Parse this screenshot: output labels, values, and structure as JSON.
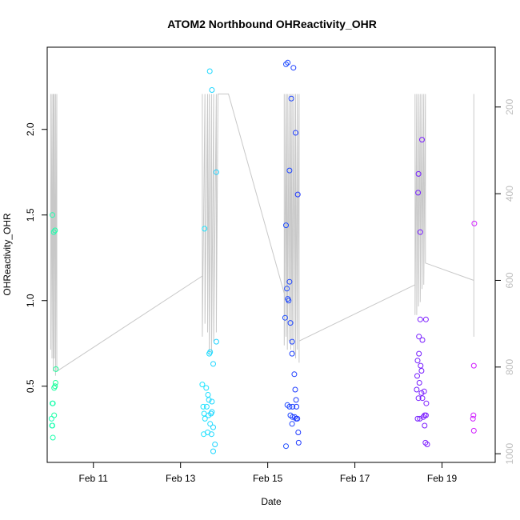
{
  "chart_data": {
    "type": "scatter",
    "title": "ATOM2 Northbound OHReactivity_OHR",
    "xlabel": "Date",
    "ylabel": "OHReactivity_OHR",
    "x_ticks": [
      {
        "day": 11,
        "label": "Feb 11"
      },
      {
        "day": 13,
        "label": "Feb 13"
      },
      {
        "day": 15,
        "label": "Feb 15"
      },
      {
        "day": 17,
        "label": "Feb 17"
      },
      {
        "day": 19,
        "label": "Feb 19"
      }
    ],
    "y_ticks": [
      0.5,
      1.0,
      1.5,
      2.0
    ],
    "y_tick_labels": [
      "0.5",
      "1.0",
      "1.5",
      "2.0"
    ],
    "y2_ticks": [
      200,
      400,
      600,
      800,
      1000
    ],
    "y2_tick_labels": [
      "200",
      "400",
      "600",
      "800",
      "1000"
    ],
    "xlim": [
      9.94,
      20.22
    ],
    "ylim": [
      0.055,
      2.48
    ],
    "y2lim": [
      1020,
      62
    ],
    "y2_label": "",
    "points": [
      {
        "day": 10.06,
        "value": 1.5,
        "color": "#1dffb0"
      },
      {
        "day": 10.09,
        "value": 1.4,
        "color": "#1cffb0"
      },
      {
        "day": 10.12,
        "value": 1.41,
        "color": "#1cffa8"
      },
      {
        "day": 10.14,
        "value": 0.6,
        "color": "#1cff9c"
      },
      {
        "day": 10.13,
        "value": 0.52,
        "color": "#1cff98"
      },
      {
        "day": 10.1,
        "value": 0.49,
        "color": "#1cffa0"
      },
      {
        "day": 10.12,
        "value": 0.5,
        "color": "#1cff9c"
      },
      {
        "day": 10.06,
        "value": 0.4,
        "color": "#1cffb0"
      },
      {
        "day": 10.07,
        "value": 0.4,
        "color": "#1cffac"
      },
      {
        "day": 10.04,
        "value": 0.31,
        "color": "#1cffb8"
      },
      {
        "day": 10.1,
        "value": 0.33,
        "color": "#1cffa4"
      },
      {
        "day": 10.05,
        "value": 0.27,
        "color": "#1cffb4"
      },
      {
        "day": 10.06,
        "value": 0.27,
        "color": "#1cffb0"
      },
      {
        "day": 10.07,
        "value": 0.2,
        "color": "#1cffac"
      },
      {
        "day": 13.55,
        "value": 1.42,
        "color": "#1ee4ff"
      },
      {
        "day": 13.67,
        "value": 2.34,
        "color": "#1ed8ff"
      },
      {
        "day": 13.72,
        "value": 2.23,
        "color": "#1ed6ff"
      },
      {
        "day": 13.82,
        "value": 1.75,
        "color": "#1ed2ff"
      },
      {
        "day": 13.82,
        "value": 0.76,
        "color": "#1ed2ff"
      },
      {
        "day": 13.66,
        "value": 0.69,
        "color": "#1edcff"
      },
      {
        "day": 13.68,
        "value": 0.7,
        "color": "#1edaff"
      },
      {
        "day": 13.75,
        "value": 0.63,
        "color": "#1ed6ff"
      },
      {
        "day": 13.5,
        "value": 0.51,
        "color": "#1ee6ff"
      },
      {
        "day": 13.59,
        "value": 0.49,
        "color": "#1ee2ff"
      },
      {
        "day": 13.63,
        "value": 0.45,
        "color": "#1edeff"
      },
      {
        "day": 13.65,
        "value": 0.42,
        "color": "#1edcff"
      },
      {
        "day": 13.72,
        "value": 0.41,
        "color": "#1ed8ff"
      },
      {
        "day": 13.52,
        "value": 0.38,
        "color": "#1ee6ff"
      },
      {
        "day": 13.6,
        "value": 0.38,
        "color": "#1ee0ff"
      },
      {
        "day": 13.54,
        "value": 0.34,
        "color": "#1ee4ff"
      },
      {
        "day": 13.64,
        "value": 0.33,
        "color": "#1edcff"
      },
      {
        "day": 13.7,
        "value": 0.34,
        "color": "#1ed8ff"
      },
      {
        "day": 13.72,
        "value": 0.35,
        "color": "#1ed6ff"
      },
      {
        "day": 13.56,
        "value": 0.31,
        "color": "#1ee2ff"
      },
      {
        "day": 13.68,
        "value": 0.28,
        "color": "#1edaff"
      },
      {
        "day": 13.75,
        "value": 0.26,
        "color": "#1ed6ff"
      },
      {
        "day": 13.53,
        "value": 0.22,
        "color": "#1ee4ff"
      },
      {
        "day": 13.62,
        "value": 0.23,
        "color": "#1edeff"
      },
      {
        "day": 13.71,
        "value": 0.22,
        "color": "#1ed8ff"
      },
      {
        "day": 13.79,
        "value": 0.16,
        "color": "#1ed4ff"
      },
      {
        "day": 13.75,
        "value": 0.12,
        "color": "#1ed6ff"
      },
      {
        "day": 15.42,
        "value": 2.38,
        "color": "#1e4cff"
      },
      {
        "day": 15.46,
        "value": 2.39,
        "color": "#1e48ff"
      },
      {
        "day": 15.59,
        "value": 2.36,
        "color": "#1e40ff"
      },
      {
        "day": 15.54,
        "value": 2.18,
        "color": "#1e44ff"
      },
      {
        "day": 15.64,
        "value": 1.98,
        "color": "#1e3cff"
      },
      {
        "day": 15.5,
        "value": 1.76,
        "color": "#1e46ff"
      },
      {
        "day": 15.69,
        "value": 1.62,
        "color": "#1e38ff"
      },
      {
        "day": 15.42,
        "value": 1.44,
        "color": "#1e4cff"
      },
      {
        "day": 15.5,
        "value": 1.11,
        "color": "#1e46ff"
      },
      {
        "day": 15.44,
        "value": 1.07,
        "color": "#1e4aff"
      },
      {
        "day": 15.46,
        "value": 1.01,
        "color": "#1e48ff"
      },
      {
        "day": 15.48,
        "value": 1.0,
        "color": "#1e48ff"
      },
      {
        "day": 15.4,
        "value": 0.9,
        "color": "#1e4eff"
      },
      {
        "day": 15.52,
        "value": 0.87,
        "color": "#1e46ff"
      },
      {
        "day": 15.56,
        "value": 0.76,
        "color": "#1e42ff"
      },
      {
        "day": 15.56,
        "value": 0.69,
        "color": "#1e42ff"
      },
      {
        "day": 15.61,
        "value": 0.57,
        "color": "#1e3eff"
      },
      {
        "day": 15.63,
        "value": 0.48,
        "color": "#1e3cff"
      },
      {
        "day": 15.65,
        "value": 0.42,
        "color": "#1e3cff"
      },
      {
        "day": 15.45,
        "value": 0.39,
        "color": "#1e48ff"
      },
      {
        "day": 15.5,
        "value": 0.38,
        "color": "#1e46ff"
      },
      {
        "day": 15.57,
        "value": 0.38,
        "color": "#1e42ff"
      },
      {
        "day": 15.66,
        "value": 0.38,
        "color": "#1e3aff"
      },
      {
        "day": 15.52,
        "value": 0.33,
        "color": "#1e46ff"
      },
      {
        "day": 15.57,
        "value": 0.32,
        "color": "#1e42ff"
      },
      {
        "day": 15.62,
        "value": 0.32,
        "color": "#1e3eff"
      },
      {
        "day": 15.65,
        "value": 0.31,
        "color": "#1e3cff"
      },
      {
        "day": 15.68,
        "value": 0.31,
        "color": "#1e3aff"
      },
      {
        "day": 15.56,
        "value": 0.28,
        "color": "#1e42ff"
      },
      {
        "day": 15.7,
        "value": 0.23,
        "color": "#1e38ff"
      },
      {
        "day": 15.42,
        "value": 0.15,
        "color": "#1e4cff"
      },
      {
        "day": 15.71,
        "value": 0.17,
        "color": "#1e38ff"
      },
      {
        "day": 18.54,
        "value": 1.94,
        "color": "#7a1eff"
      },
      {
        "day": 18.46,
        "value": 1.74,
        "color": "#761eff"
      },
      {
        "day": 18.45,
        "value": 1.63,
        "color": "#741eff"
      },
      {
        "day": 18.5,
        "value": 1.4,
        "color": "#781eff"
      },
      {
        "day": 18.5,
        "value": 0.89,
        "color": "#781eff"
      },
      {
        "day": 18.63,
        "value": 0.89,
        "color": "#7e1eff"
      },
      {
        "day": 18.47,
        "value": 0.79,
        "color": "#761eff"
      },
      {
        "day": 18.55,
        "value": 0.77,
        "color": "#7a1eff"
      },
      {
        "day": 18.47,
        "value": 0.69,
        "color": "#761eff"
      },
      {
        "day": 18.44,
        "value": 0.65,
        "color": "#741eff"
      },
      {
        "day": 18.51,
        "value": 0.62,
        "color": "#781eff"
      },
      {
        "day": 18.53,
        "value": 0.59,
        "color": "#7a1eff"
      },
      {
        "day": 18.43,
        "value": 0.56,
        "color": "#741eff"
      },
      {
        "day": 18.48,
        "value": 0.52,
        "color": "#761eff"
      },
      {
        "day": 18.42,
        "value": 0.48,
        "color": "#721eff"
      },
      {
        "day": 18.53,
        "value": 0.46,
        "color": "#7a1eff"
      },
      {
        "day": 18.59,
        "value": 0.47,
        "color": "#7c1eff"
      },
      {
        "day": 18.46,
        "value": 0.43,
        "color": "#761eff"
      },
      {
        "day": 18.55,
        "value": 0.43,
        "color": "#7a1eff"
      },
      {
        "day": 18.64,
        "value": 0.4,
        "color": "#7e1eff"
      },
      {
        "day": 18.44,
        "value": 0.31,
        "color": "#741eff"
      },
      {
        "day": 18.49,
        "value": 0.31,
        "color": "#761eff"
      },
      {
        "day": 18.57,
        "value": 0.32,
        "color": "#7a1eff"
      },
      {
        "day": 18.6,
        "value": 0.33,
        "color": "#7c1eff"
      },
      {
        "day": 18.63,
        "value": 0.33,
        "color": "#7e1eff"
      },
      {
        "day": 18.6,
        "value": 0.27,
        "color": "#7c1eff"
      },
      {
        "day": 18.62,
        "value": 0.17,
        "color": "#7e1eff"
      },
      {
        "day": 18.66,
        "value": 0.16,
        "color": "#7e1eff"
      },
      {
        "day": 19.74,
        "value": 1.45,
        "color": "#d21eff"
      },
      {
        "day": 19.73,
        "value": 0.62,
        "color": "#d01eff"
      },
      {
        "day": 19.72,
        "value": 0.33,
        "color": "#d01eff"
      },
      {
        "day": 19.71,
        "value": 0.31,
        "color": "#ce1eff"
      },
      {
        "day": 19.73,
        "value": 0.24,
        "color": "#d01eff"
      }
    ],
    "secondary_series": {
      "name": "",
      "color": "#c8c8c8",
      "axis": "right",
      "points": [
        [
          10.02,
          170
        ],
        [
          10.02,
          760
        ],
        [
          10.05,
          170
        ],
        [
          10.05,
          780
        ],
        [
          10.08,
          170
        ],
        [
          10.08,
          810
        ],
        [
          10.1,
          170
        ],
        [
          10.1,
          780
        ],
        [
          10.13,
          170
        ],
        [
          10.13,
          820
        ],
        [
          10.16,
          170
        ],
        [
          10.16,
          810
        ],
        [
          13.5,
          590
        ],
        [
          13.5,
          170
        ],
        [
          13.5,
          730
        ],
        [
          13.56,
          170
        ],
        [
          13.56,
          700
        ],
        [
          13.62,
          170
        ],
        [
          13.62,
          720
        ],
        [
          13.66,
          170
        ],
        [
          13.66,
          770
        ],
        [
          13.71,
          170
        ],
        [
          13.71,
          770
        ],
        [
          13.76,
          170
        ],
        [
          13.76,
          740
        ],
        [
          13.82,
          170
        ],
        [
          13.82,
          720
        ],
        [
          13.86,
          170
        ],
        [
          14.1,
          170
        ],
        [
          15.38,
          630
        ],
        [
          15.38,
          170
        ],
        [
          15.38,
          750
        ],
        [
          15.42,
          170
        ],
        [
          15.42,
          730
        ],
        [
          15.45,
          170
        ],
        [
          15.45,
          760
        ],
        [
          15.49,
          170
        ],
        [
          15.49,
          740
        ],
        [
          15.53,
          170
        ],
        [
          15.53,
          760
        ],
        [
          15.56,
          170
        ],
        [
          15.56,
          750
        ],
        [
          15.6,
          170
        ],
        [
          15.6,
          770
        ],
        [
          15.64,
          170
        ],
        [
          15.64,
          780
        ],
        [
          15.68,
          170
        ],
        [
          15.68,
          760
        ],
        [
          15.72,
          170
        ],
        [
          15.72,
          790
        ],
        [
          15.72,
          740
        ],
        [
          18.38,
          610
        ],
        [
          18.38,
          170
        ],
        [
          18.38,
          680
        ],
        [
          18.42,
          170
        ],
        [
          18.42,
          680
        ],
        [
          18.46,
          170
        ],
        [
          18.46,
          660
        ],
        [
          18.5,
          170
        ],
        [
          18.5,
          650
        ],
        [
          18.54,
          170
        ],
        [
          18.54,
          620
        ],
        [
          18.58,
          170
        ],
        [
          18.58,
          610
        ],
        [
          18.62,
          170
        ],
        [
          18.62,
          560
        ],
        [
          18.62,
          560
        ],
        [
          19.73,
          600
        ],
        [
          19.73,
          170
        ],
        [
          19.73,
          730
        ]
      ]
    }
  }
}
